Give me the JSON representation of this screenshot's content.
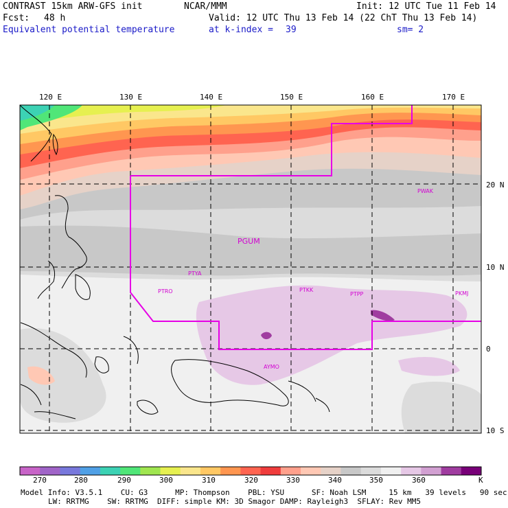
{
  "header": {
    "model_line": "CONTRAST 15km ARW-GFS init",
    "org": "NCAR/MMM",
    "init": "Init: 12 UTC Tue 11 Feb 14",
    "fcst_label": "Fcst:",
    "fcst_value": "48 h",
    "valid": "Valid: 12 UTC Thu 13 Feb 14 (22 ChT Thu 13 Feb 14)",
    "field": "Equivalent potential temperature",
    "level": "at k-index =",
    "k_index": "39",
    "smoothing": "sm= 2"
  },
  "axes": {
    "lon_labels": [
      "120 E",
      "130 E",
      "140 E",
      "150 E",
      "160 E",
      "170 E"
    ],
    "lat_labels": [
      "20 N",
      "10 N",
      "0",
      "10 S"
    ]
  },
  "stations": [
    "PGUM",
    "PTYA",
    "PTRO",
    "PTKK",
    "PTPP",
    "PKMJ",
    "PWAK",
    "AYMO"
  ],
  "colorbar": {
    "unit": "K",
    "labels": [
      "270",
      "280",
      "290",
      "300",
      "310",
      "320",
      "330",
      "340",
      "350",
      "360"
    ],
    "colors": [
      "#c864c8",
      "#a064c8",
      "#7878dc",
      "#50a0e6",
      "#3cd2b4",
      "#50e678",
      "#a0e650",
      "#e6f050",
      "#fae68c",
      "#ffc864",
      "#ff9650",
      "#ff6450",
      "#f03c3c",
      "#ffa08c",
      "#ffc8b4",
      "#e6d2c8",
      "#c8c8c8",
      "#dcdcdc",
      "#f0f0f0",
      "#e6c8e6",
      "#d2a0d2",
      "#a03ca0",
      "#780078"
    ]
  },
  "model_info": {
    "line1": "Model Info: V3.5.1    CU: G3      MP: Thompson    PBL: YSU      SF: Noah LSM     15 km   39 levels   90 sec",
    "line2": "LW: RRTMG    SW: RRTMG  DIFF: simple KM: 3D Smagor DAMP: Rayleigh3  SFLAY: Rev MM5"
  }
}
